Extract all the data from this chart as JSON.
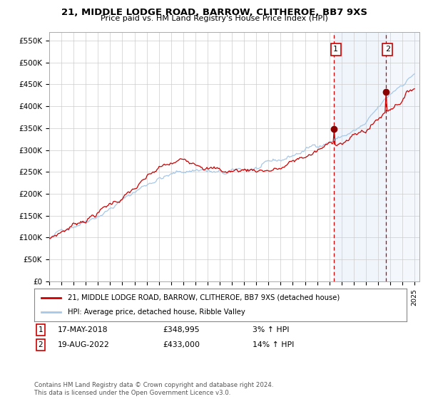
{
  "title": "21, MIDDLE LODGE ROAD, BARROW, CLITHEROE, BB7 9XS",
  "subtitle": "Price paid vs. HM Land Registry's House Price Index (HPI)",
  "legend_line1": "21, MIDDLE LODGE ROAD, BARROW, CLITHEROE, BB7 9XS (detached house)",
  "legend_line2": "HPI: Average price, detached house, Ribble Valley",
  "annotation1_label": "1",
  "annotation1_date": "17-MAY-2018",
  "annotation1_price": "£348,995",
  "annotation1_hpi": "3% ↑ HPI",
  "annotation1_year": 2018.38,
  "annotation1_value": 348995,
  "annotation2_label": "2",
  "annotation2_date": "19-AUG-2022",
  "annotation2_price": "£433,000",
  "annotation2_hpi": "14% ↑ HPI",
  "annotation2_year": 2022.63,
  "annotation2_value": 433000,
  "hpi_line_color": "#a8c8e8",
  "price_line_color": "#cc0000",
  "point_color": "#8b0000",
  "dashed_line_color": "#cc0000",
  "shading_color": "#cce0f5",
  "background_color": "#ffffff",
  "grid_color": "#cccccc",
  "ylim": [
    0,
    570000
  ],
  "yticks": [
    0,
    50000,
    100000,
    150000,
    200000,
    250000,
    300000,
    350000,
    400000,
    450000,
    500000,
    550000
  ],
  "ytick_labels": [
    "£0",
    "£50K",
    "£100K",
    "£150K",
    "£200K",
    "£250K",
    "£300K",
    "£350K",
    "£400K",
    "£450K",
    "£500K",
    "£550K"
  ],
  "copyright_text": "Contains HM Land Registry data © Crown copyright and database right 2024.\nThis data is licensed under the Open Government Licence v3.0."
}
